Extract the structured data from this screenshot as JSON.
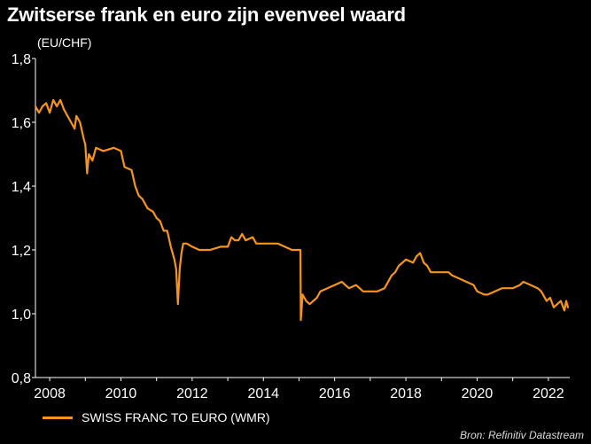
{
  "chart_data": {
    "type": "line",
    "title": "Zwitserse frank en euro zijn evenveel waard",
    "ylabel": "(EU/CHF)",
    "xlabel": "",
    "xlim": [
      2007.6,
      2022.6
    ],
    "ylim": [
      0.8,
      1.8
    ],
    "x_ticks": [
      2008,
      2010,
      2012,
      2014,
      2016,
      2018,
      2020,
      2022
    ],
    "x_tick_labels": [
      "2008",
      "2010",
      "2012",
      "2014",
      "2016",
      "2018",
      "2020",
      "2022"
    ],
    "y_ticks": [
      0.8,
      1.0,
      1.2,
      1.4,
      1.6,
      1.8
    ],
    "y_tick_labels": [
      "0,8",
      "1,0",
      "1,2",
      "1,4",
      "1,6",
      "1,8"
    ],
    "grid": false,
    "legend_position": "bottom-left",
    "series": [
      {
        "name": "SWISS FRANC TO EURO (WMR)",
        "color": "#f7941d",
        "points": [
          [
            2007.6,
            1.65
          ],
          [
            2007.7,
            1.63
          ],
          [
            2007.8,
            1.65
          ],
          [
            2007.9,
            1.66
          ],
          [
            2008.0,
            1.63
          ],
          [
            2008.1,
            1.67
          ],
          [
            2008.2,
            1.65
          ],
          [
            2008.3,
            1.67
          ],
          [
            2008.4,
            1.64
          ],
          [
            2008.5,
            1.62
          ],
          [
            2008.6,
            1.6
          ],
          [
            2008.7,
            1.58
          ],
          [
            2008.75,
            1.62
          ],
          [
            2008.85,
            1.6
          ],
          [
            2008.95,
            1.55
          ],
          [
            2009.0,
            1.53
          ],
          [
            2009.05,
            1.44
          ],
          [
            2009.1,
            1.5
          ],
          [
            2009.2,
            1.48
          ],
          [
            2009.3,
            1.52
          ],
          [
            2009.5,
            1.51
          ],
          [
            2009.8,
            1.52
          ],
          [
            2010.0,
            1.51
          ],
          [
            2010.1,
            1.46
          ],
          [
            2010.3,
            1.45
          ],
          [
            2010.4,
            1.4
          ],
          [
            2010.5,
            1.37
          ],
          [
            2010.6,
            1.36
          ],
          [
            2010.75,
            1.33
          ],
          [
            2010.9,
            1.32
          ],
          [
            2011.0,
            1.3
          ],
          [
            2011.1,
            1.29
          ],
          [
            2011.2,
            1.26
          ],
          [
            2011.3,
            1.26
          ],
          [
            2011.4,
            1.21
          ],
          [
            2011.5,
            1.17
          ],
          [
            2011.55,
            1.14
          ],
          [
            2011.6,
            1.03
          ],
          [
            2011.65,
            1.14
          ],
          [
            2011.7,
            1.19
          ],
          [
            2011.75,
            1.22
          ],
          [
            2011.85,
            1.22
          ],
          [
            2012.0,
            1.21
          ],
          [
            2012.2,
            1.2
          ],
          [
            2012.5,
            1.2
          ],
          [
            2012.8,
            1.21
          ],
          [
            2013.0,
            1.21
          ],
          [
            2013.1,
            1.24
          ],
          [
            2013.2,
            1.23
          ],
          [
            2013.3,
            1.23
          ],
          [
            2013.4,
            1.25
          ],
          [
            2013.5,
            1.23
          ],
          [
            2013.7,
            1.24
          ],
          [
            2013.8,
            1.22
          ],
          [
            2014.0,
            1.22
          ],
          [
            2014.2,
            1.22
          ],
          [
            2014.4,
            1.22
          ],
          [
            2014.6,
            1.21
          ],
          [
            2014.8,
            1.2
          ],
          [
            2015.0,
            1.2
          ],
          [
            2015.04,
            1.2
          ],
          [
            2015.05,
            0.98
          ],
          [
            2015.1,
            1.06
          ],
          [
            2015.2,
            1.04
          ],
          [
            2015.3,
            1.03
          ],
          [
            2015.5,
            1.05
          ],
          [
            2015.6,
            1.07
          ],
          [
            2015.8,
            1.08
          ],
          [
            2016.0,
            1.09
          ],
          [
            2016.2,
            1.1
          ],
          [
            2016.4,
            1.08
          ],
          [
            2016.6,
            1.09
          ],
          [
            2016.8,
            1.07
          ],
          [
            2017.0,
            1.07
          ],
          [
            2017.2,
            1.07
          ],
          [
            2017.4,
            1.08
          ],
          [
            2017.6,
            1.12
          ],
          [
            2017.7,
            1.13
          ],
          [
            2017.8,
            1.15
          ],
          [
            2017.9,
            1.16
          ],
          [
            2018.0,
            1.17
          ],
          [
            2018.2,
            1.16
          ],
          [
            2018.3,
            1.18
          ],
          [
            2018.4,
            1.19
          ],
          [
            2018.5,
            1.16
          ],
          [
            2018.6,
            1.15
          ],
          [
            2018.7,
            1.13
          ],
          [
            2018.9,
            1.13
          ],
          [
            2019.0,
            1.13
          ],
          [
            2019.2,
            1.13
          ],
          [
            2019.3,
            1.12
          ],
          [
            2019.5,
            1.11
          ],
          [
            2019.7,
            1.1
          ],
          [
            2019.9,
            1.09
          ],
          [
            2020.0,
            1.07
          ],
          [
            2020.2,
            1.06
          ],
          [
            2020.3,
            1.06
          ],
          [
            2020.5,
            1.07
          ],
          [
            2020.7,
            1.08
          ],
          [
            2020.9,
            1.08
          ],
          [
            2021.0,
            1.08
          ],
          [
            2021.2,
            1.09
          ],
          [
            2021.3,
            1.1
          ],
          [
            2021.5,
            1.09
          ],
          [
            2021.7,
            1.08
          ],
          [
            2021.8,
            1.07
          ],
          [
            2021.95,
            1.04
          ],
          [
            2022.05,
            1.05
          ],
          [
            2022.15,
            1.02
          ],
          [
            2022.25,
            1.03
          ],
          [
            2022.35,
            1.04
          ],
          [
            2022.45,
            1.01
          ],
          [
            2022.5,
            1.04
          ],
          [
            2022.55,
            1.02
          ]
        ]
      }
    ]
  },
  "source": "Bron: Refinitiv Datastream"
}
